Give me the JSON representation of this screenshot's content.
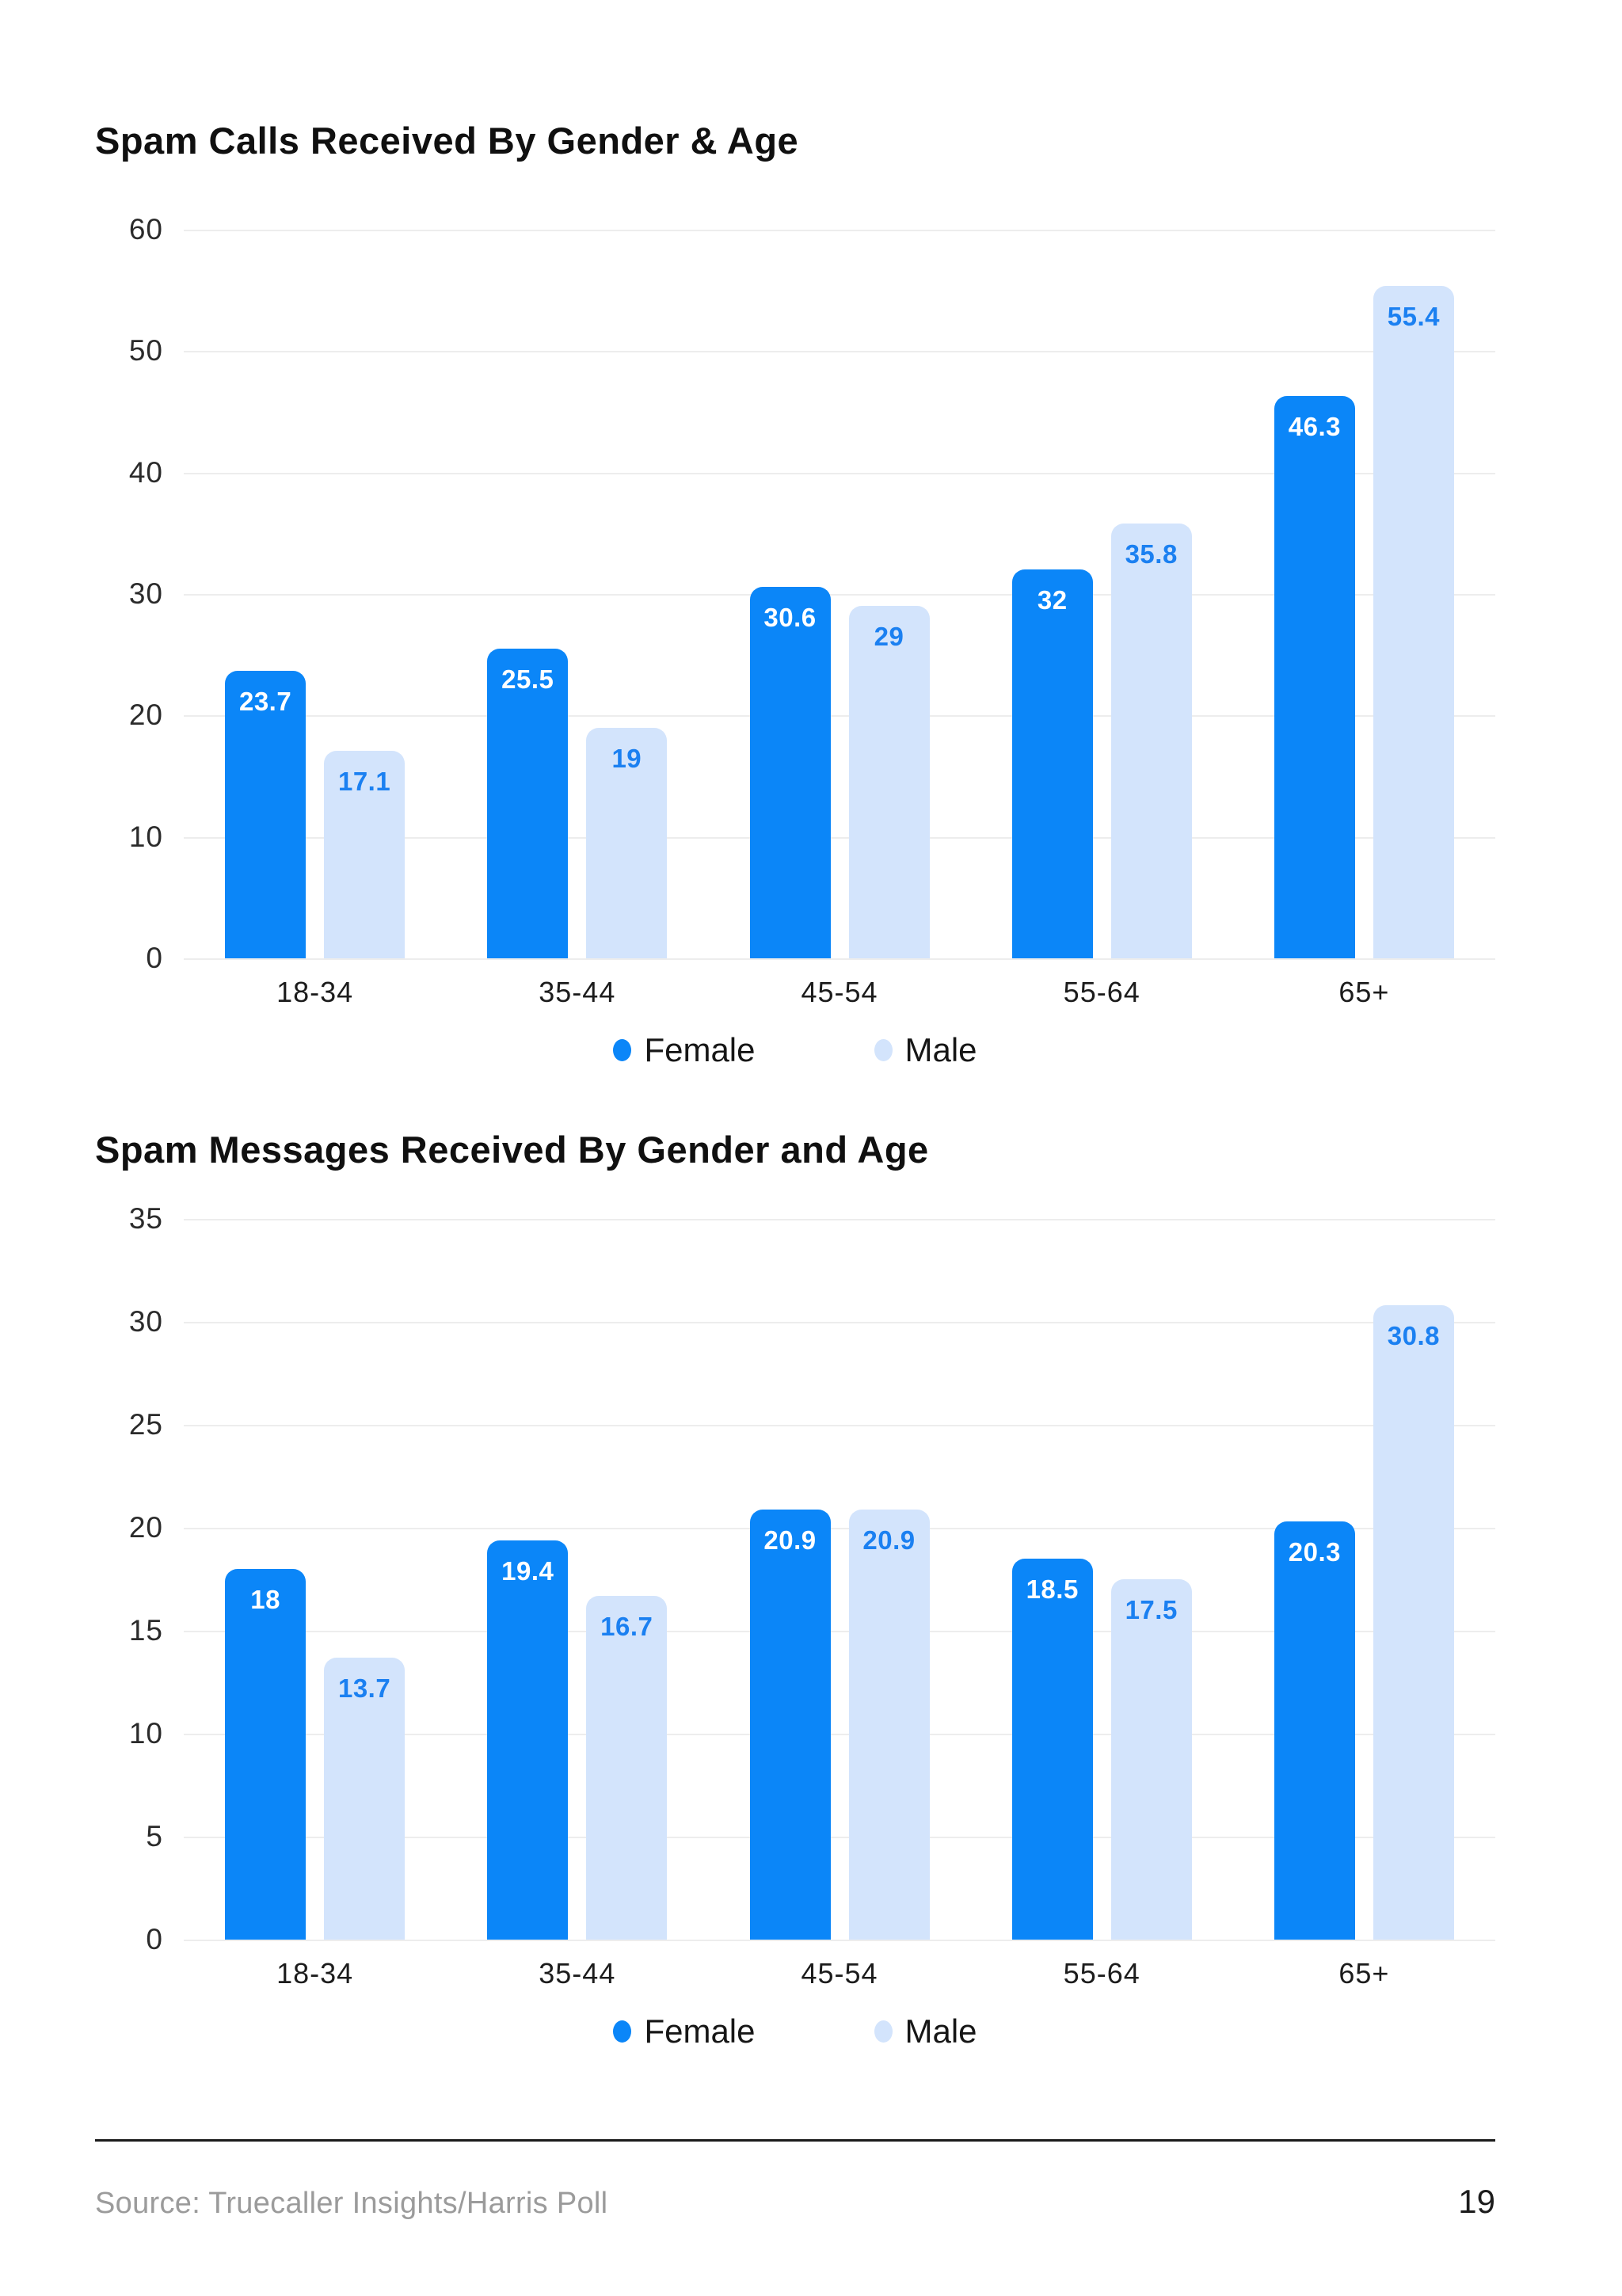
{
  "page": {
    "source": "Source: Truecaller Insights/Harris Poll",
    "number": "19"
  },
  "colors": {
    "female": "#0b86f8",
    "male": "#d3e4fc",
    "female_label": "#ffffff",
    "male_label": "#1b80f1",
    "grid": "#ededed",
    "title": "#101010",
    "axis_text": "#2b2b2b",
    "source_text": "#9b9b9b",
    "rule": "#1b1b1b"
  },
  "chart_data": [
    {
      "type": "bar",
      "title": "Spam Calls Received By Gender & Age",
      "categories": [
        "18-34",
        "35-44",
        "45-54",
        "55-64",
        "65+"
      ],
      "series": [
        {
          "name": "Female",
          "values": [
            23.7,
            25.5,
            30.6,
            32,
            46.3
          ]
        },
        {
          "name": "Male",
          "values": [
            17.1,
            19,
            29,
            35.8,
            55.4
          ]
        }
      ],
      "xlabel": "",
      "ylabel": "",
      "ylim": [
        0,
        60
      ],
      "yticks": [
        0,
        10,
        20,
        30,
        40,
        50,
        60
      ],
      "grid": true,
      "legend_position": "bottom",
      "value_labels": "inside-top"
    },
    {
      "type": "bar",
      "title": "Spam Messages Received By Gender and Age",
      "categories": [
        "18-34",
        "35-44",
        "45-54",
        "55-64",
        "65+"
      ],
      "series": [
        {
          "name": "Female",
          "values": [
            18,
            19.4,
            20.9,
            18.5,
            20.3
          ]
        },
        {
          "name": "Male",
          "values": [
            13.7,
            16.7,
            20.9,
            17.5,
            30.8
          ]
        }
      ],
      "xlabel": "",
      "ylabel": "",
      "ylim": [
        0,
        35
      ],
      "yticks": [
        0,
        5,
        10,
        15,
        20,
        25,
        30,
        35
      ],
      "grid": true,
      "legend_position": "bottom",
      "value_labels": "inside-top"
    }
  ]
}
